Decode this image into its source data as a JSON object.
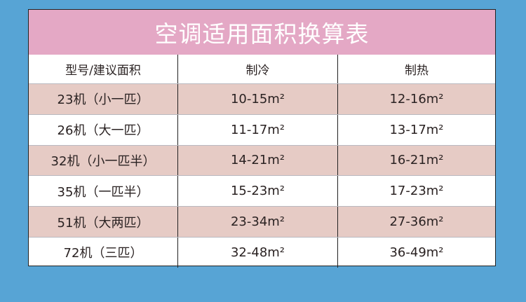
{
  "title": "空调适用面积换算表",
  "headers": [
    "型号/建议面积",
    "制冷",
    "制热"
  ],
  "rows": [
    [
      "23机（小一匹）",
      "10-15m²",
      "12-16m²"
    ],
    [
      "26机（大一匹）",
      "11-17m²",
      "13-17m²"
    ],
    [
      "32机（小一匹半）",
      "14-21m²",
      "16-21m²"
    ],
    [
      "35机（一匹半）",
      "15-23m²",
      "17-23m²"
    ],
    [
      "51机（大两匹）",
      "23-34m²",
      "27-36m²"
    ],
    [
      "72机（三匹）",
      "32-48m²",
      "36-49m²"
    ]
  ],
  "colors": {
    "background": "#57a4d5",
    "title_band": "#e4a8c5",
    "alt_row": "#e6cbc5"
  }
}
